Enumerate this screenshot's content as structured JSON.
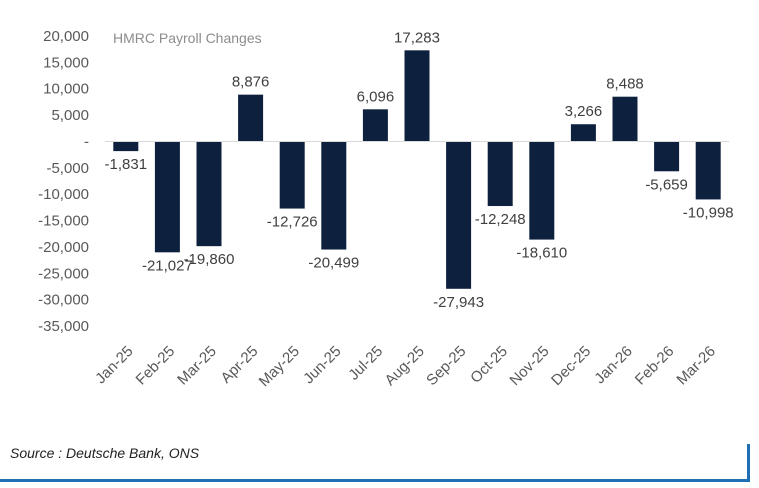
{
  "colors": {
    "bar": "#0d213f",
    "accent_rule": "#1f6fb5",
    "text": "#595959"
  },
  "chart_data": {
    "type": "bar",
    "title": "HMRC Payroll Changes",
    "xlabel": "",
    "ylabel": "",
    "ylim": [
      -35000,
      20000
    ],
    "yticks": [
      20000,
      15000,
      10000,
      5000,
      0,
      -5000,
      -10000,
      -15000,
      -20000,
      -25000,
      -30000,
      -35000
    ],
    "ytick_labels": [
      "20,000",
      "15,000",
      "10,000",
      "5,000",
      "-",
      "-5,000",
      "-10,000",
      "-15,000",
      "-20,000",
      "-25,000",
      "-30,000",
      "-35,000"
    ],
    "categories": [
      "Jan-25",
      "Feb-25",
      "Mar-25",
      "Apr-25",
      "May-25",
      "Jun-25",
      "Jul-25",
      "Aug-25",
      "Sep-25",
      "Oct-25",
      "Nov-25",
      "Dec-25",
      "Jan-26",
      "Feb-26",
      "Mar-26"
    ],
    "values": [
      -1831,
      -21027,
      -19860,
      8876,
      -12726,
      -20499,
      6096,
      17283,
      -27943,
      -12248,
      -18610,
      3266,
      8488,
      -5659,
      -10998
    ],
    "data_labels": [
      "-1,831",
      "-21,027",
      "-19,860",
      "8,876",
      "-12,726",
      "-20,499",
      "6,096",
      "17,283",
      "-27,943",
      "-12,248",
      "-18,610",
      "3,266",
      "8,488",
      "-5,659",
      "-10,998"
    ],
    "grid": false,
    "legend": "none"
  },
  "footer": {
    "source": "Source : Deutsche Bank, ONS"
  }
}
